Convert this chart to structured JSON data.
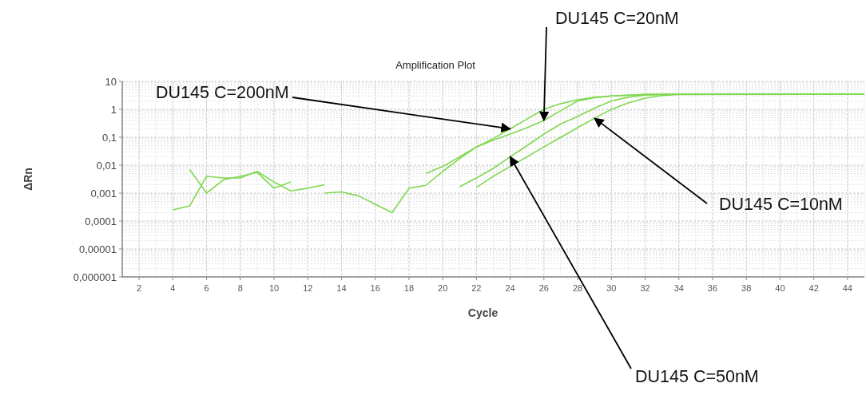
{
  "chart_data": {
    "type": "line",
    "title": "Amplification Plot",
    "xlabel": "Cycle",
    "ylabel": "ΔRn",
    "log": "y",
    "grid": true,
    "marker": "none",
    "line_style": "solid",
    "xlim": [
      1,
      45
    ],
    "xticks": [
      2,
      4,
      6,
      8,
      10,
      12,
      14,
      16,
      18,
      20,
      22,
      24,
      26,
      28,
      30,
      32,
      34,
      36,
      38,
      40,
      42,
      44
    ],
    "ylim": [
      1e-06,
      10
    ],
    "yticks": [
      {
        "value": 1e-06,
        "label": "0,000001"
      },
      {
        "value": 1e-05,
        "label": "0,00001"
      },
      {
        "value": 0.0001,
        "label": "0,0001"
      },
      {
        "value": 0.001,
        "label": "0,001"
      },
      {
        "value": 0.01,
        "label": "0,01"
      },
      {
        "value": 0.1,
        "label": "0,1"
      },
      1,
      10
    ],
    "series": [
      {
        "color": "#80d850",
        "x": [
          4,
          5,
          6,
          7,
          8,
          9,
          10,
          11,
          12,
          13
        ],
        "values": [
          0.00025,
          0.00035,
          0.004,
          0.0035,
          0.0035,
          0.006,
          0.0025,
          0.0012,
          0.0015,
          0.002
        ]
      },
      {
        "color": "#80d850",
        "x": [
          5,
          6,
          7,
          8,
          9,
          10,
          11
        ],
        "values": [
          0.007,
          0.001,
          0.003,
          0.004,
          0.0055,
          0.0015,
          0.0025
        ]
      },
      {
        "color": "#80d850",
        "x": [
          13,
          14,
          15,
          16,
          17,
          18,
          19,
          20,
          21,
          22,
          23,
          24,
          25,
          26,
          27,
          28,
          29,
          30,
          32,
          34,
          45
        ],
        "values": [
          0.001,
          0.0011,
          0.0008,
          0.0004,
          0.0002,
          0.0015,
          0.0019,
          0.006,
          0.017,
          0.045,
          0.08,
          0.13,
          0.22,
          0.4,
          0.9,
          2.0,
          2.6,
          3.0,
          3.4,
          3.5,
          3.5
        ]
      },
      {
        "color": "#80d850",
        "x": [
          19,
          20,
          21,
          22,
          23,
          24,
          25,
          26,
          27,
          28,
          29,
          30,
          32,
          34,
          45
        ],
        "values": [
          0.005,
          0.009,
          0.02,
          0.045,
          0.09,
          0.2,
          0.45,
          1.0,
          1.6,
          2.2,
          2.7,
          3.0,
          3.4,
          3.5,
          3.5
        ]
      },
      {
        "color": "#80d850",
        "x": [
          21,
          22,
          23,
          24,
          25,
          26,
          27,
          28,
          29,
          30,
          31,
          32,
          34,
          45
        ],
        "values": [
          0.0017,
          0.0035,
          0.0077,
          0.02,
          0.05,
          0.13,
          0.3,
          0.55,
          1.1,
          2.0,
          2.7,
          3.2,
          3.5,
          3.5
        ]
      },
      {
        "color": "#80d850",
        "x": [
          22,
          23,
          24,
          25,
          26,
          27,
          28,
          29,
          30,
          31,
          32,
          33,
          34,
          45
        ],
        "values": [
          0.0016,
          0.004,
          0.009,
          0.02,
          0.045,
          0.1,
          0.22,
          0.48,
          1.0,
          1.7,
          2.5,
          3.1,
          3.4,
          3.5
        ]
      }
    ],
    "annotations": [
      {
        "text": "DU145 C=200nM",
        "x": 24,
        "y": 0.2
      },
      {
        "text": "DU145 C=20nM",
        "x": 26,
        "y": 0.4
      },
      {
        "text": "DU145 C=10nM",
        "x": 29,
        "y": 0.48
      },
      {
        "text": "DU145 C=50nM",
        "x": 24,
        "y": 0.02
      }
    ]
  }
}
